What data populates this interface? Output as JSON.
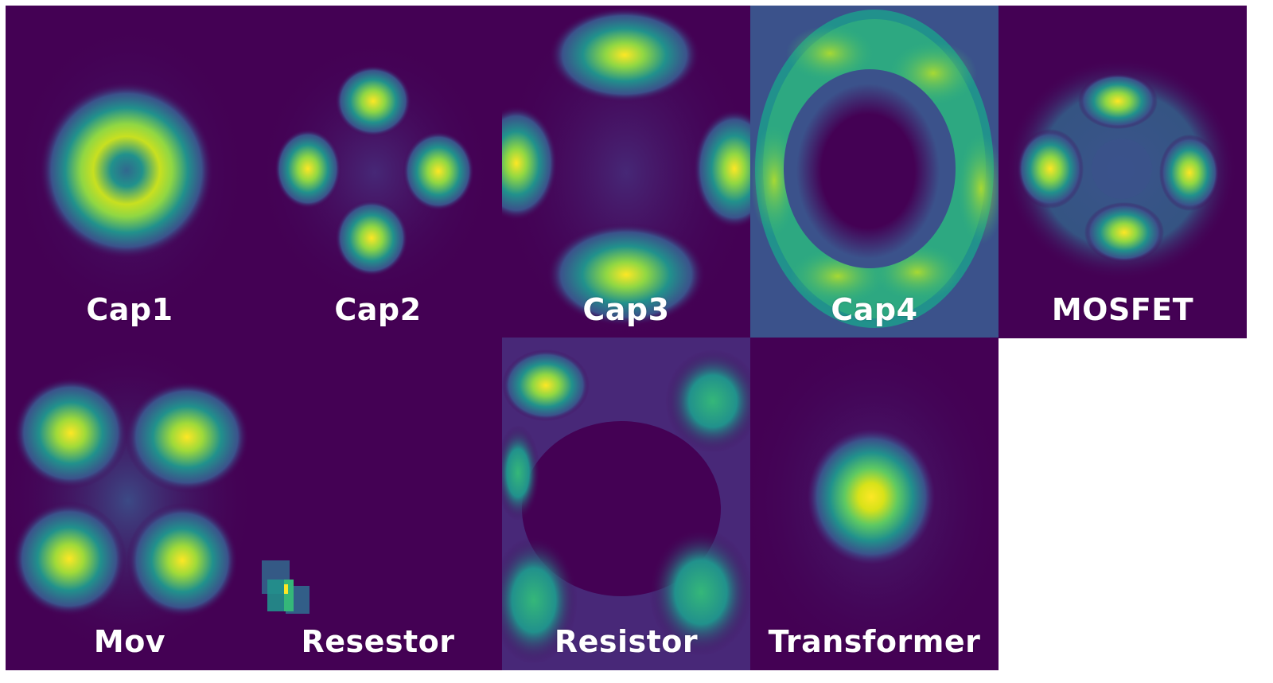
{
  "colors": {
    "background": "#440154",
    "low": "#472c7a",
    "mid_low": "#31688e",
    "mid": "#21918c",
    "mid_high": "#35b779",
    "high": "#90d743",
    "peak": "#fde725",
    "label": "#ffffff"
  },
  "panels": [
    {
      "label": "Cap1"
    },
    {
      "label": "Cap2"
    },
    {
      "label": "Cap3"
    },
    {
      "label": "Cap4"
    },
    {
      "label": "MOSFET"
    },
    {
      "label": "Mov"
    },
    {
      "label": "Resestor"
    },
    {
      "label": "Resistor"
    },
    {
      "label": "Transformer"
    }
  ]
}
